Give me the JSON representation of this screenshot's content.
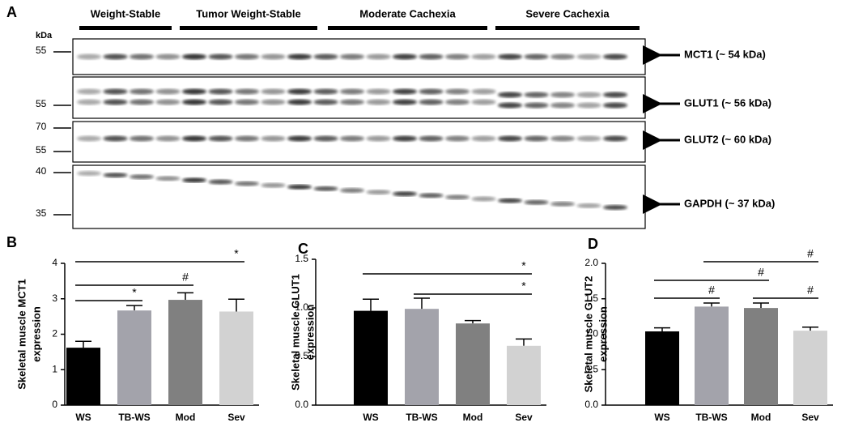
{
  "blot": {
    "panel_label": "A",
    "unit": "kDa",
    "groups": [
      "Weight-Stable",
      "Tumor Weight-Stable",
      "Moderate Cachexia",
      "Severe Cachexia"
    ],
    "rows": [
      {
        "markers": [
          "55"
        ],
        "label": "MCT1 (~ 54 kDa)"
      },
      {
        "markers": [
          "55"
        ],
        "label": "GLUT1 (~ 56 kDa)"
      },
      {
        "markers": [
          "70",
          "55"
        ],
        "label": "GLUT2 (~ 60 kDa)"
      },
      {
        "markers": [
          "40",
          "35"
        ],
        "label": "GAPDH (~ 37 kDa)"
      }
    ]
  },
  "chart_data": [
    {
      "type": "bar",
      "panel_label": "B",
      "y_label": [
        "Skeletal muscle MCT1",
        "expression"
      ],
      "categories": [
        "WS",
        "TB-WS",
        "Mod",
        "Sev"
      ],
      "values": [
        1.62,
        2.67,
        2.97,
        2.64
      ],
      "errors": [
        0.18,
        0.14,
        0.2,
        0.35
      ],
      "colors": [
        "#000000",
        "#a3a3ab",
        "#808080",
        "#d2d2d2"
      ],
      "ylim": [
        0,
        4
      ],
      "yticks": [
        0,
        1,
        2,
        3,
        4
      ],
      "significance": [
        {
          "label": "*"
        },
        {
          "label": "#"
        },
        {
          "label": "*"
        }
      ]
    },
    {
      "type": "bar",
      "panel_label": "C",
      "y_label": [
        "Skeletal muscle GLUT1",
        "expression"
      ],
      "categories": [
        "WS",
        "TB-WS",
        "Mod",
        "Sev"
      ],
      "values": [
        0.97,
        0.99,
        0.84,
        0.61
      ],
      "errors": [
        0.12,
        0.11,
        0.03,
        0.07
      ],
      "colors": [
        "#000000",
        "#a3a3ab",
        "#808080",
        "#d2d2d2"
      ],
      "ylim": [
        0,
        1.5
      ],
      "yticks": [
        {
          "value": 0,
          "label": "0.0"
        },
        {
          "value": 0.5,
          "label": "0.5"
        },
        {
          "value": 1,
          "label": "1.0"
        },
        {
          "value": 1.5,
          "label": "1.5"
        }
      ],
      "significance": [
        {
          "label": "*"
        },
        {
          "label": "*"
        }
      ]
    },
    {
      "type": "bar",
      "panel_label": "D",
      "y_label": [
        "Skeletal muscle GLUT2",
        "expression"
      ],
      "categories": [
        "WS",
        "TB-WS",
        "Mod",
        "Sev"
      ],
      "values": [
        1.04,
        1.39,
        1.37,
        1.05
      ],
      "errors": [
        0.05,
        0.05,
        0.07,
        0.05
      ],
      "colors": [
        "#000000",
        "#a3a3ab",
        "#808080",
        "#d2d2d2"
      ],
      "ylim": [
        0,
        2
      ],
      "yticks": [
        {
          "value": 0,
          "label": "0.0"
        },
        {
          "value": 0.5,
          "label": "0.5"
        },
        {
          "value": 1,
          "label": "1.0"
        },
        {
          "value": 1.5,
          "label": "1.5"
        },
        {
          "value": 2,
          "label": "2.0"
        }
      ],
      "significance": [
        {
          "label": "#"
        },
        {
          "label": "#"
        },
        {
          "label": "#"
        },
        {
          "label": "#"
        }
      ]
    }
  ]
}
